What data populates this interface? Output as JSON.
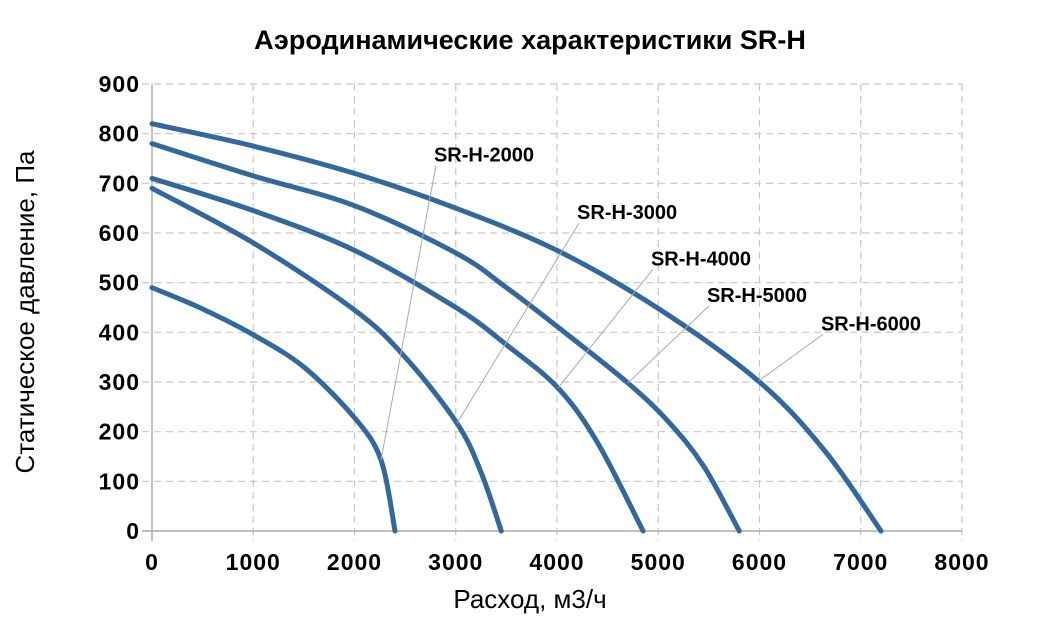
{
  "page": {
    "background": "#ffffff"
  },
  "chart_data": {
    "type": "line",
    "title": "Аэродинамические характеристики SR-H",
    "xlabel": "Расход, м3/ч",
    "ylabel": "Статическое давление, Па",
    "xlim": [
      0,
      8000
    ],
    "ylim": [
      0,
      900
    ],
    "xticks": [
      0,
      1000,
      2000,
      3000,
      4000,
      5000,
      6000,
      7000,
      8000
    ],
    "yticks": [
      0,
      100,
      200,
      300,
      400,
      500,
      600,
      700,
      800,
      900
    ],
    "grid": "dashed",
    "legend_position": "inline-labels-with-leader-lines",
    "colors": {
      "curve": "#31689E",
      "grid": "#C7C7C7",
      "axis": "#ABABAB",
      "leader": "#ABABAB",
      "text": "#000000"
    },
    "series": [
      {
        "name": "SR-H-2000",
        "points": [
          [
            0,
            490
          ],
          [
            500,
            447
          ],
          [
            1000,
            395
          ],
          [
            1500,
            330
          ],
          [
            2000,
            228
          ],
          [
            2262,
            143
          ],
          [
            2400,
            0
          ]
        ],
        "label_anchor": [
          2785,
          744
        ],
        "leader_end": [
          2262,
          143
        ]
      },
      {
        "name": "SR-H-3000",
        "points": [
          [
            0,
            690
          ],
          [
            1000,
            580
          ],
          [
            2000,
            445
          ],
          [
            2500,
            350
          ],
          [
            3012,
            217
          ],
          [
            3250,
            118
          ],
          [
            3450,
            0
          ]
        ],
        "label_anchor": [
          4198,
          628
        ],
        "leader_end": [
          3012,
          217
        ]
      },
      {
        "name": "SR-H-4000",
        "points": [
          [
            0,
            710
          ],
          [
            1000,
            645
          ],
          [
            2000,
            565
          ],
          [
            3000,
            450
          ],
          [
            3500,
            375
          ],
          [
            4010,
            288
          ],
          [
            4400,
            178
          ],
          [
            4850,
            0
          ]
        ],
        "label_anchor": [
          4928,
          535
        ],
        "leader_end": [
          4010,
          288
        ]
      },
      {
        "name": "SR-H-5000",
        "points": [
          [
            0,
            780
          ],
          [
            1000,
            715
          ],
          [
            2000,
            655
          ],
          [
            3000,
            560
          ],
          [
            3500,
            490
          ],
          [
            4000,
            412
          ],
          [
            4700,
            298
          ],
          [
            5100,
            220
          ],
          [
            5450,
            130
          ],
          [
            5800,
            0
          ]
        ],
        "label_anchor": [
          5481,
          461
        ],
        "leader_end": [
          4700,
          298
        ]
      },
      {
        "name": "SR-H-6000",
        "points": [
          [
            0,
            820
          ],
          [
            1000,
            775
          ],
          [
            2000,
            720
          ],
          [
            3000,
            650
          ],
          [
            4000,
            565
          ],
          [
            5000,
            448
          ],
          [
            6000,
            300
          ],
          [
            6650,
            160
          ],
          [
            7200,
            0
          ]
        ],
        "label_anchor": [
          6607,
          404
        ],
        "leader_end": [
          5990,
          302
        ]
      }
    ]
  }
}
